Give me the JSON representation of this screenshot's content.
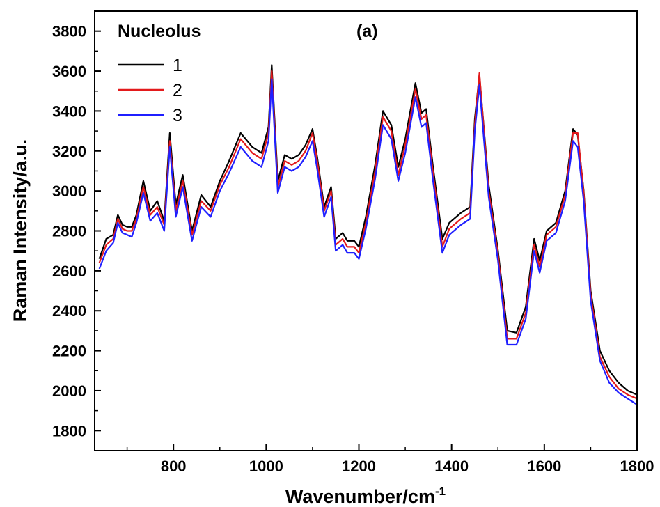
{
  "chart_data": {
    "type": "line",
    "panel_label": "(a)",
    "legend_title": "Nucleolus",
    "xlabel": "Wavenumber/cm",
    "xlabel_superscript": "-1",
    "ylabel": "Raman Intensity/a.u.",
    "xlim": [
      630,
      1800
    ],
    "ylim": [
      1700,
      3900
    ],
    "xticks": [
      800,
      1000,
      1200,
      1400,
      1600,
      1800
    ],
    "yticks": [
      1800,
      2000,
      2200,
      2400,
      2600,
      2800,
      3000,
      3200,
      3400,
      3600,
      3800
    ],
    "grid": false,
    "legend_position": "top-left",
    "series": [
      {
        "name": "1",
        "color": "#000000",
        "x": [
          640,
          655,
          670,
          680,
          690,
          700,
          710,
          720,
          735,
          750,
          765,
          780,
          792,
          805,
          820,
          840,
          860,
          880,
          900,
          920,
          945,
          970,
          990,
          1005,
          1012,
          1025,
          1040,
          1055,
          1070,
          1085,
          1100,
          1110,
          1125,
          1140,
          1150,
          1165,
          1175,
          1190,
          1200,
          1215,
          1235,
          1252,
          1270,
          1285,
          1300,
          1322,
          1335,
          1345,
          1360,
          1380,
          1395,
          1420,
          1440,
          1450,
          1460,
          1480,
          1500,
          1520,
          1540,
          1560,
          1578,
          1590,
          1605,
          1625,
          1645,
          1662,
          1672,
          1685,
          1700,
          1720,
          1740,
          1760,
          1780,
          1800
        ],
        "y": [
          2660,
          2760,
          2780,
          2880,
          2830,
          2820,
          2820,
          2880,
          3050,
          2900,
          2950,
          2850,
          3290,
          2930,
          3080,
          2800,
          2980,
          2920,
          3050,
          3150,
          3290,
          3220,
          3190,
          3320,
          3630,
          3050,
          3180,
          3160,
          3180,
          3230,
          3310,
          3170,
          2920,
          3020,
          2760,
          2790,
          2750,
          2750,
          2720,
          2870,
          3130,
          3400,
          3330,
          3120,
          3260,
          3540,
          3390,
          3410,
          3120,
          2760,
          2840,
          2890,
          2920,
          3360,
          3580,
          3030,
          2700,
          2300,
          2290,
          2420,
          2760,
          2650,
          2800,
          2840,
          3000,
          3310,
          3280,
          3000,
          2500,
          2200,
          2100,
          2040,
          2000,
          1980
        ]
      },
      {
        "name": "2",
        "color": "#e31a1c",
        "x": [
          640,
          655,
          670,
          680,
          690,
          700,
          710,
          720,
          735,
          750,
          765,
          780,
          792,
          805,
          820,
          840,
          860,
          880,
          900,
          920,
          945,
          970,
          990,
          1005,
          1012,
          1025,
          1040,
          1055,
          1070,
          1085,
          1100,
          1110,
          1125,
          1140,
          1150,
          1165,
          1175,
          1190,
          1200,
          1215,
          1235,
          1252,
          1270,
          1285,
          1300,
          1322,
          1335,
          1345,
          1360,
          1380,
          1395,
          1420,
          1440,
          1450,
          1460,
          1480,
          1500,
          1520,
          1540,
          1560,
          1578,
          1590,
          1605,
          1625,
          1645,
          1662,
          1672,
          1685,
          1700,
          1720,
          1740,
          1760,
          1780,
          1800
        ],
        "y": [
          2640,
          2730,
          2760,
          2860,
          2810,
          2800,
          2800,
          2860,
          3020,
          2880,
          2920,
          2830,
          3250,
          2900,
          3050,
          2780,
          2950,
          2900,
          3030,
          3120,
          3260,
          3190,
          3160,
          3290,
          3600,
          3020,
          3150,
          3130,
          3150,
          3200,
          3290,
          3150,
          2900,
          3000,
          2730,
          2760,
          2720,
          2720,
          2690,
          2840,
          3100,
          3370,
          3300,
          3080,
          3230,
          3510,
          3360,
          3380,
          3090,
          2720,
          2810,
          2860,
          2890,
          3330,
          3590,
          3000,
          2680,
          2260,
          2260,
          2390,
          2730,
          2620,
          2780,
          2820,
          2980,
          3290,
          3290,
          2990,
          2480,
          2170,
          2070,
          2010,
          1980,
          1960
        ]
      },
      {
        "name": "3",
        "color": "#1f1fff",
        "x": [
          640,
          655,
          670,
          680,
          690,
          700,
          710,
          720,
          735,
          750,
          765,
          780,
          792,
          805,
          820,
          840,
          860,
          880,
          900,
          920,
          945,
          970,
          990,
          1005,
          1012,
          1025,
          1040,
          1055,
          1070,
          1085,
          1100,
          1110,
          1125,
          1140,
          1150,
          1165,
          1175,
          1190,
          1200,
          1215,
          1235,
          1252,
          1270,
          1285,
          1300,
          1322,
          1335,
          1345,
          1360,
          1380,
          1395,
          1420,
          1440,
          1450,
          1460,
          1480,
          1500,
          1520,
          1540,
          1560,
          1578,
          1590,
          1605,
          1625,
          1645,
          1662,
          1672,
          1685,
          1700,
          1720,
          1740,
          1760,
          1780,
          1800
        ],
        "y": [
          2610,
          2700,
          2740,
          2840,
          2790,
          2780,
          2770,
          2840,
          2990,
          2850,
          2890,
          2800,
          3220,
          2870,
          3020,
          2750,
          2920,
          2870,
          3000,
          3090,
          3220,
          3150,
          3120,
          3250,
          3560,
          2990,
          3120,
          3100,
          3120,
          3170,
          3250,
          3110,
          2870,
          2970,
          2700,
          2730,
          2690,
          2690,
          2660,
          2810,
          3060,
          3330,
          3260,
          3050,
          3190,
          3470,
          3320,
          3340,
          3050,
          2690,
          2780,
          2830,
          2860,
          3300,
          3530,
          2970,
          2650,
          2230,
          2230,
          2360,
          2700,
          2590,
          2750,
          2790,
          2950,
          3250,
          3220,
          2950,
          2450,
          2150,
          2040,
          1990,
          1960,
          1930
        ]
      }
    ]
  }
}
